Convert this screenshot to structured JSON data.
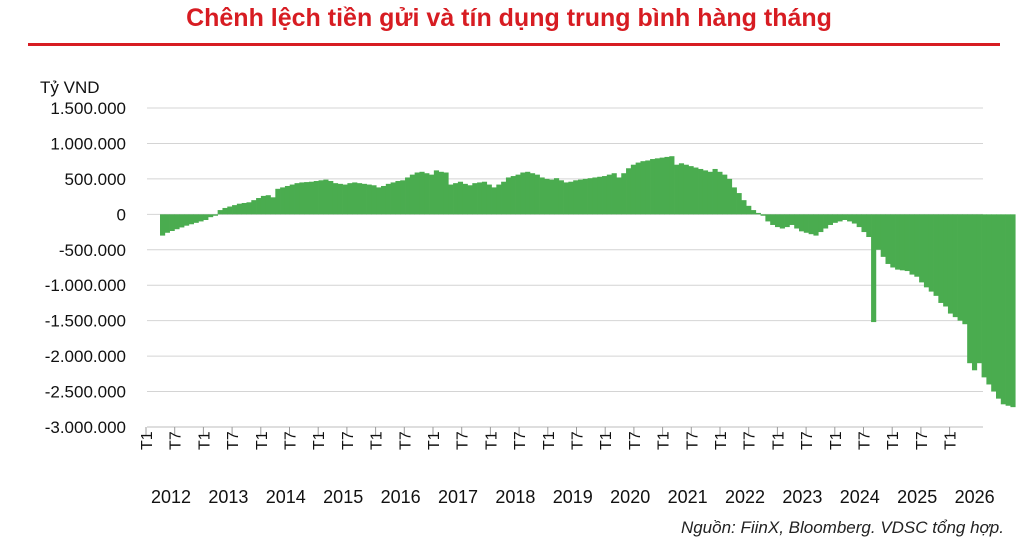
{
  "title": "Chênh lệch tiền gửi và tín dụng trung bình hàng tháng",
  "source": "Nguồn: FiinX, Bloomberg. VDSC tổng hợp.",
  "colors": {
    "title": "#d71c22",
    "bar": "#4aac4f",
    "grid": "#d4d4d4"
  },
  "chart_data": {
    "type": "bar",
    "title": "Chênh lệch tiền gửi và tín dụng trung bình hàng tháng",
    "ylabel": "Tỷ VND",
    "xlabel": "",
    "ylim": [
      -3000000,
      1500000
    ],
    "y_ticks": [
      1500000,
      1000000,
      500000,
      0,
      -500000,
      -1000000,
      -1500000,
      -2000000,
      -2500000,
      -3000000
    ],
    "y_tick_labels": [
      "1.500.000",
      "1.000.000",
      "500.000",
      "0",
      "-500.000",
      "-1.000.000",
      "-1.500.000",
      "-2.000.000",
      "-2.500.000",
      "-3.000.000"
    ],
    "x_tick_labels": [
      "T1",
      "T7",
      "T1",
      "T7",
      "T1",
      "T7",
      "T1",
      "T7",
      "T1",
      "T7",
      "T1",
      "T7",
      "T1",
      "T7",
      "T1",
      "T7",
      "T1",
      "T7",
      "T1",
      "T7",
      "T1",
      "T7",
      "T1",
      "T7",
      "T1",
      "T7",
      "T1",
      "T7",
      "T1"
    ],
    "years": [
      "2012",
      "2013",
      "2014",
      "2015",
      "2016",
      "2017",
      "2018",
      "2019",
      "2020",
      "2021",
      "2022",
      "2023",
      "2024",
      "2025",
      "2026"
    ],
    "grid": true,
    "legend": "none",
    "start_period": "T1 2012",
    "period": "month",
    "values": [
      -300000,
      -260000,
      -235000,
      -210000,
      -185000,
      -160000,
      -140000,
      -120000,
      -100000,
      -80000,
      -40000,
      -20000,
      60000,
      90000,
      110000,
      130000,
      150000,
      160000,
      170000,
      200000,
      230000,
      260000,
      270000,
      240000,
      360000,
      380000,
      400000,
      420000,
      440000,
      450000,
      455000,
      460000,
      470000,
      480000,
      490000,
      470000,
      440000,
      430000,
      420000,
      440000,
      450000,
      440000,
      430000,
      420000,
      410000,
      380000,
      400000,
      430000,
      450000,
      470000,
      480000,
      520000,
      560000,
      590000,
      600000,
      580000,
      560000,
      620000,
      600000,
      590000,
      420000,
      440000,
      460000,
      430000,
      410000,
      440000,
      450000,
      460000,
      420000,
      380000,
      420000,
      460000,
      520000,
      540000,
      560000,
      590000,
      600000,
      580000,
      560000,
      520000,
      500000,
      490000,
      510000,
      480000,
      450000,
      460000,
      480000,
      490000,
      500000,
      510000,
      520000,
      530000,
      540000,
      560000,
      580000,
      520000,
      580000,
      650000,
      700000,
      730000,
      750000,
      760000,
      780000,
      790000,
      800000,
      810000,
      820000,
      700000,
      720000,
      700000,
      680000,
      660000,
      640000,
      620000,
      600000,
      640000,
      600000,
      560000,
      500000,
      380000,
      300000,
      200000,
      120000,
      60000,
      20000,
      -20000,
      -100000,
      -150000,
      -180000,
      -200000,
      -180000,
      -150000,
      -200000,
      -240000,
      -260000,
      -280000,
      -300000,
      -250000,
      -200000,
      -150000,
      -120000,
      -100000,
      -80000,
      -100000,
      -130000,
      -180000,
      -250000,
      -320000,
      -1520000,
      -500000,
      -600000,
      -700000,
      -750000,
      -780000,
      -790000,
      -800000,
      -850000,
      -880000,
      -960000,
      -1030000,
      -1090000,
      -1150000,
      -1250000,
      -1300000,
      -1400000,
      -1450000,
      -1500000,
      -1550000,
      -2100000,
      -2200000,
      -2100000,
      -2300000,
      -2400000,
      -2500000,
      -2600000,
      -2680000,
      -2700000,
      -2720000
    ]
  }
}
